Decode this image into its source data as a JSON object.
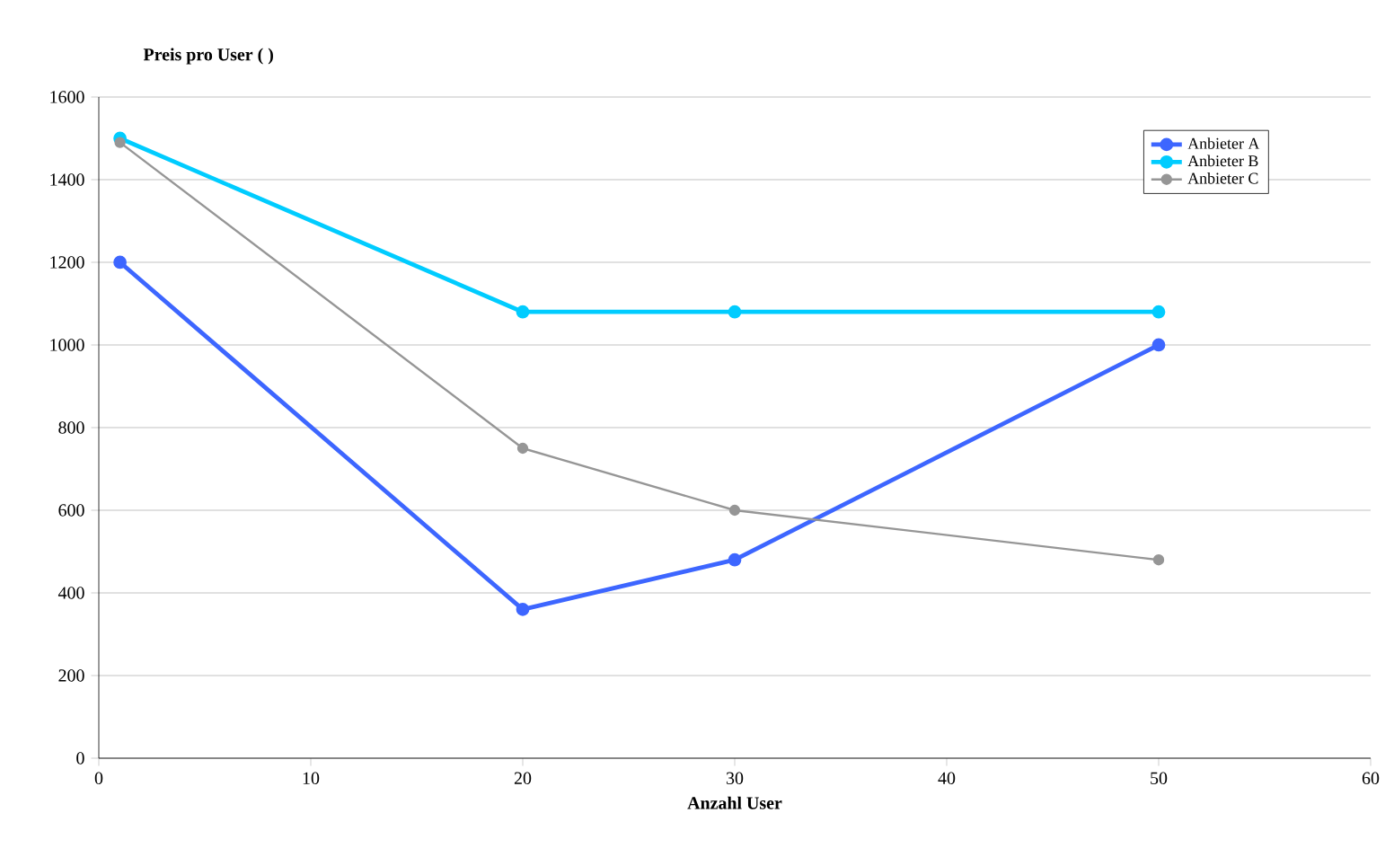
{
  "chart_data": {
    "type": "line",
    "ylabel": "Preis pro User ( )",
    "xlabel": "Anzahl User",
    "x": [
      1,
      20,
      30,
      50
    ],
    "series": [
      {
        "name": "Anbieter A",
        "color": "#3d66ff",
        "values": [
          1200,
          360,
          480,
          1000
        ]
      },
      {
        "name": "Anbieter B",
        "color": "#00ccff",
        "values": [
          1500,
          1080,
          1080,
          1080
        ]
      },
      {
        "name": "Anbieter C",
        "color": "#969696",
        "values": [
          1490,
          750,
          600,
          480
        ]
      }
    ],
    "xlim": [
      0,
      60
    ],
    "xticks": [
      0,
      10,
      20,
      30,
      40,
      50,
      60
    ],
    "ylim": [
      0,
      1600
    ],
    "yticks": [
      0,
      200,
      400,
      600,
      800,
      1000,
      1200,
      1400,
      1600
    ],
    "grid": "y",
    "legend": "top right",
    "marker": "circle",
    "line_style": "solid"
  }
}
